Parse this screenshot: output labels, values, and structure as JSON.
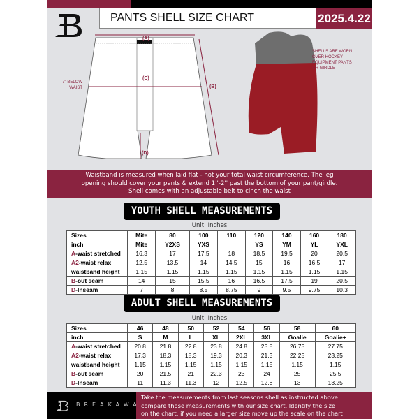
{
  "header": {
    "title": "PANTS SHELL SIZE CHART",
    "date": "2025.4.22"
  },
  "diagram": {
    "label_a": "(A)",
    "label_b": "(B)",
    "label_c": "(C)",
    "label_d": "(D)",
    "below_waist_line1": "7'' BELOW",
    "below_waist_line2": "WAIST",
    "note_lines": [
      "SHELLS ARE WORN",
      "OVER HOCKEY",
      "EQUIPMENT PANTS",
      "OR GIRDLE"
    ]
  },
  "info_lines": [
    "Waistband is measured when laid flat - not your total waist circumference. The leg",
    "opening should cover your pants & extend 1''-2'' past the bottom of your pant/girdle.",
    "Shell comes with an adjustable belt to cinch the waist"
  ],
  "youth": {
    "title": "YOUTH SHELL MEASUREMENTS",
    "unit": "Unit: Inches",
    "rows": [
      {
        "key": "",
        "label": "Sizes",
        "values": [
          "Mite",
          "80",
          "100",
          "110",
          "120",
          "140",
          "160",
          "180"
        ]
      },
      {
        "key": "",
        "label": "inch",
        "values": [
          "Mite",
          "Y2XS",
          "YXS",
          "",
          "YS",
          "YM",
          "YL",
          "YXL"
        ]
      },
      {
        "key": "A",
        "label": "-waist stretched",
        "values": [
          "16.3",
          "17",
          "17.5",
          "18",
          "18.5",
          "19.5",
          "20",
          "20.5"
        ]
      },
      {
        "key": "A2",
        "label": "-waist relax",
        "values": [
          "12.5",
          "13.5",
          "14",
          "14.5",
          "15",
          "16",
          "16.5",
          "17"
        ]
      },
      {
        "key": "",
        "label": "waistband height",
        "values": [
          "1.15",
          "1.15",
          "1.15",
          "1.15",
          "1.15",
          "1.15",
          "1.15",
          "1.15"
        ]
      },
      {
        "key": "B",
        "label": "-out seam",
        "values": [
          "14",
          "15",
          "15.5",
          "16",
          "16.5",
          "17.5",
          "19",
          "20.5"
        ]
      },
      {
        "key": "D",
        "label": "-Inseam",
        "values": [
          "7",
          "8",
          "8.5",
          "8.75",
          "9",
          "9.5",
          "9.75",
          "10.3"
        ]
      }
    ]
  },
  "adult": {
    "title": "ADULT SHELL MEASUREMENTS",
    "unit": "Unit: Inches",
    "rows": [
      {
        "key": "",
        "label": "Sizes",
        "values": [
          "46",
          "48",
          "50",
          "52",
          "54",
          "56",
          "58",
          "60"
        ]
      },
      {
        "key": "",
        "label": "inch",
        "values": [
          "S",
          "M",
          "L",
          "XL",
          "2XL",
          "3XL",
          "Goalie",
          "Goalie+"
        ]
      },
      {
        "key": "A",
        "label": "-waist stretched",
        "values": [
          "20.8",
          "21.8",
          "22.8",
          "23.8",
          "24.8",
          "25.8",
          "26.75",
          "27.75"
        ]
      },
      {
        "key": "A2",
        "label": "-waist relax",
        "values": [
          "17.3",
          "18.3",
          "18.3",
          "19.3",
          "20.3",
          "21.3",
          "22.25",
          "23.25"
        ]
      },
      {
        "key": "",
        "label": "waistband height",
        "values": [
          "1.15",
          "1.15",
          "1.15",
          "1.15",
          "1.15",
          "1.15",
          "1.15",
          "1.15"
        ]
      },
      {
        "key": "B",
        "label": "-out seam",
        "values": [
          "20",
          "21.5",
          "21",
          "22.3",
          "23",
          "24",
          "25",
          "25.5"
        ]
      },
      {
        "key": "D",
        "label": "-Inseam",
        "values": [
          "11",
          "11.3",
          "11.3",
          "12",
          "12.5",
          "12.8",
          "13",
          "13.25"
        ]
      }
    ]
  },
  "footer": {
    "brand": "BREAKAWAY",
    "lines": [
      "Take the measurements from last seasons shell as instructed above",
      "compare those measurements  with our size chart. Identify the size",
      "on the chart, if you need a larger size move up the scale on the chart"
    ]
  },
  "colors": {
    "accent": "#8a2340",
    "background": "#e1e2e5"
  }
}
